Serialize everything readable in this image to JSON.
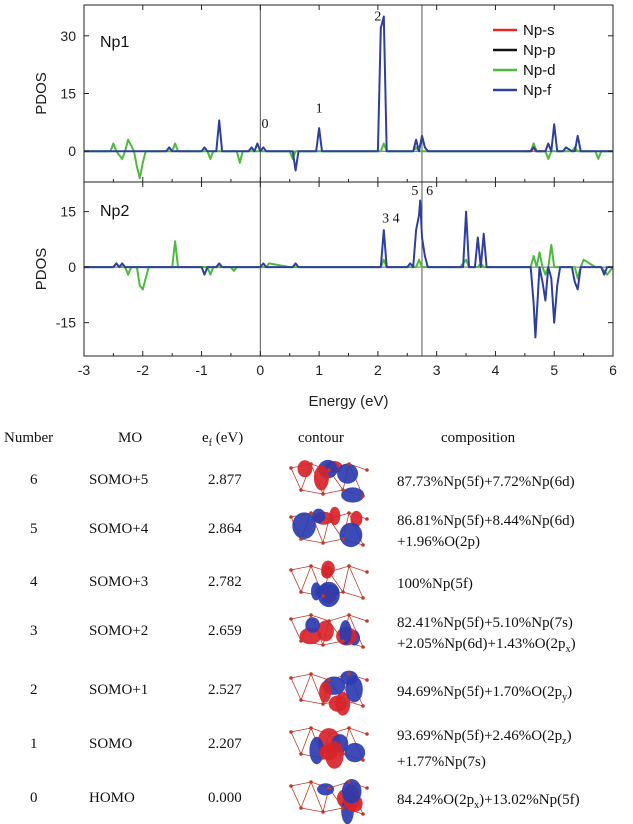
{
  "chart_data": [
    {
      "type": "line",
      "panel": "top",
      "panel_label": "Np1",
      "ylabel": "PDOS",
      "ylim": [
        -8,
        38
      ],
      "yticks": [
        "30",
        "15",
        "0"
      ],
      "ytick_values": [
        30,
        15,
        0
      ],
      "xlim": [
        -3,
        6
      ],
      "grid": false,
      "vlines": [
        0,
        2.75
      ],
      "legend": {
        "placement": "top-right",
        "entries": [
          {
            "name": "Np-s",
            "color": "#e8262a"
          },
          {
            "name": "Np-p",
            "color": "#111111"
          },
          {
            "name": "Np-d",
            "color": "#4cbb3c"
          },
          {
            "name": "Np-f",
            "color": "#2f3f9e"
          }
        ]
      },
      "annotations": [
        {
          "text": "0",
          "x": 0.08,
          "y": 6
        },
        {
          "text": "1",
          "x": 1.0,
          "y": 10
        },
        {
          "text": "2",
          "x": 2.0,
          "y": 34
        }
      ],
      "series": [
        {
          "name": "Np-s",
          "color": "#e8262a",
          "x": [
            4.5,
            4.62,
            4.65,
            4.68,
            4.8
          ],
          "y": [
            0,
            0,
            2,
            0,
            0
          ]
        },
        {
          "name": "Np-d",
          "color": "#4cbb3c",
          "x": [
            -3,
            -2.55,
            -2.5,
            -2.45,
            -2.35,
            -2.3,
            -2.25,
            -2.15,
            -2.1,
            -2.05,
            -2.0,
            -1.95,
            -1.8,
            -1.5,
            -1.45,
            -1.4,
            -1.2,
            -0.9,
            -0.85,
            -0.8,
            -0.5,
            -0.4,
            -0.35,
            -0.3,
            -0.2,
            -0.1,
            0,
            0.5,
            0.55,
            0.6,
            0.65,
            1.0,
            1.5,
            2.05,
            2.1,
            2.15,
            2.5,
            2.6,
            2.65,
            2.7,
            3.0,
            3.5,
            4.0,
            4.5,
            4.6,
            4.65,
            4.7,
            4.85,
            4.9,
            4.95,
            5.0,
            5.3,
            5.35,
            5.4,
            5.7,
            5.75,
            5.8,
            6.0
          ],
          "y": [
            0,
            0,
            2,
            0,
            -2,
            0,
            3,
            0,
            -4,
            -7,
            -3,
            0,
            0,
            0,
            2,
            0,
            0,
            0,
            -2,
            0,
            0,
            0,
            -3,
            0,
            0,
            0,
            0,
            0,
            -2,
            0,
            0,
            0,
            0,
            0,
            2,
            0,
            0,
            0,
            1,
            0,
            0,
            0,
            0,
            0,
            0,
            2,
            0,
            0,
            -2,
            0,
            0,
            0,
            1,
            0,
            0,
            -2,
            0,
            0
          ]
        },
        {
          "name": "Np-f",
          "color": "#2f3f9e",
          "x": [
            -3,
            -1.6,
            -1.55,
            -1.5,
            -1.0,
            -0.95,
            -0.9,
            -0.75,
            -0.7,
            -0.65,
            -0.2,
            -0.15,
            -0.1,
            -0.05,
            0,
            0.05,
            0.1,
            0.55,
            0.6,
            0.65,
            0.95,
            1.0,
            1.05,
            1.95,
            2.0,
            2.05,
            2.1,
            2.15,
            2.6,
            2.65,
            2.7,
            2.75,
            2.8,
            2.85,
            4.6,
            4.65,
            4.7,
            4.85,
            4.9,
            4.95,
            5.0,
            5.05,
            5.15,
            5.2,
            5.3,
            5.35,
            5.4,
            5.45,
            5.5,
            6.0
          ],
          "y": [
            0,
            0,
            1,
            0,
            0,
            1,
            0,
            0,
            8,
            0,
            0,
            1,
            0,
            2,
            0,
            1,
            0,
            0,
            -5,
            0,
            0,
            6,
            0,
            0,
            0,
            32,
            35,
            0,
            0,
            3,
            0,
            4,
            1,
            0,
            0,
            1,
            0,
            0,
            2,
            0,
            7,
            0,
            0,
            1,
            0,
            0,
            4,
            0,
            0,
            0
          ]
        }
      ]
    },
    {
      "type": "line",
      "panel": "bottom",
      "panel_label": "Np2",
      "ylabel": "PDOS",
      "xlabel": "Energy (eV)",
      "ylim": [
        -24,
        23
      ],
      "yticks": [
        "15",
        "0",
        "-15"
      ],
      "ytick_values": [
        15,
        0,
        -15
      ],
      "xlim": [
        -3,
        6
      ],
      "xticks": [
        "-3",
        "-2",
        "-1",
        "0",
        "1",
        "2",
        "3",
        "4",
        "5",
        "6"
      ],
      "xtick_values": [
        -3,
        -2,
        -1,
        0,
        1,
        2,
        3,
        4,
        5,
        6
      ],
      "grid": false,
      "vlines": [
        0,
        2.75
      ],
      "annotations": [
        {
          "text": "3 4",
          "x": 2.22,
          "y": 12
        },
        {
          "text": "5",
          "x": 2.63,
          "y": 19.5
        },
        {
          "text": "6",
          "x": 2.88,
          "y": 19.5
        }
      ],
      "series": [
        {
          "name": "Np-d",
          "color": "#4cbb3c",
          "x": [
            -3,
            -2.5,
            -2.45,
            -2.4,
            -2.3,
            -2.25,
            -2.2,
            -2.1,
            -2.05,
            -2.0,
            -1.95,
            -1.9,
            -1.7,
            -1.5,
            -1.45,
            -1.4,
            -1.3,
            -0.9,
            -0.85,
            -0.8,
            -0.5,
            -0.45,
            -0.4,
            0,
            0.1,
            0.15,
            0.5,
            2.05,
            2.1,
            2.15,
            2.65,
            2.7,
            2.75,
            3.4,
            3.5,
            3.55,
            3.7,
            3.75,
            3.8,
            4.6,
            4.65,
            4.7,
            4.75,
            4.8,
            4.85,
            4.9,
            4.95,
            5.0,
            5.05,
            5.1,
            5.35,
            5.4,
            5.45,
            5.5,
            5.7,
            5.8,
            5.9,
            6.0
          ],
          "y": [
            0,
            0,
            1,
            0,
            0,
            -2,
            0,
            0,
            -5,
            -6,
            -3,
            0,
            0,
            0,
            7,
            0,
            0,
            0,
            -2,
            0,
            0,
            -1,
            0,
            0,
            0,
            1,
            0,
            0,
            2,
            0,
            0,
            2,
            0,
            0,
            2,
            0,
            0,
            1,
            0,
            0,
            3,
            0,
            4,
            0,
            -2,
            0,
            6,
            0,
            0,
            0,
            0,
            -3,
            0,
            2,
            0,
            0,
            -2,
            0
          ]
        },
        {
          "name": "Np-f",
          "color": "#2f3f9e",
          "x": [
            -3,
            -2.5,
            -2.45,
            -2.4,
            -2.35,
            -2.3,
            -1.0,
            -0.95,
            -0.9,
            -0.75,
            -0.7,
            -0.65,
            0,
            0.05,
            0.1,
            0.15,
            0.55,
            0.6,
            0.65,
            2.0,
            2.05,
            2.1,
            2.15,
            2.5,
            2.55,
            2.6,
            2.65,
            2.7,
            2.72,
            2.75,
            2.8,
            2.85,
            3.4,
            3.45,
            3.5,
            3.55,
            3.65,
            3.7,
            3.75,
            3.8,
            3.85,
            4.6,
            4.65,
            4.68,
            4.72,
            4.75,
            4.8,
            4.85,
            4.9,
            4.95,
            5.0,
            5.05,
            5.1,
            5.3,
            5.35,
            5.4,
            5.45,
            5.8,
            5.85,
            5.9,
            6.0
          ],
          "y": [
            0,
            0,
            1,
            0,
            1,
            0,
            0,
            -2,
            0,
            0,
            1,
            0,
            0,
            1,
            0,
            0,
            0,
            1,
            0,
            0,
            0,
            10,
            0,
            0,
            1,
            0,
            10,
            14,
            18,
            8,
            3,
            0,
            0,
            0,
            15,
            0,
            0,
            8,
            0,
            9,
            0,
            0,
            -10,
            -19,
            -8,
            0,
            -4,
            -9,
            0,
            -3,
            -15,
            -5,
            0,
            0,
            -4,
            -6,
            0,
            0,
            -2,
            0,
            0
          ]
        }
      ]
    }
  ],
  "table": {
    "headers": {
      "number": "Number",
      "mo": "MO",
      "ef_main": "e",
      "ef_sub": "f",
      "ef_unit": " (eV)",
      "contour": "contour",
      "composition": "composition"
    },
    "rows": [
      {
        "number": "6",
        "mo": "SOMO+5",
        "ef": "2.877",
        "comp": [
          [
            {
              "t": "87.73%Np(5f)+7.72%Np(6d)"
            }
          ]
        ]
      },
      {
        "number": "5",
        "mo": "SOMO+4",
        "ef": "2.864",
        "comp": [
          [
            {
              "t": "86.81%Np(5f)+8.44%Np(6d)"
            }
          ],
          [
            {
              "t": "+1.96%O(2p)"
            }
          ]
        ]
      },
      {
        "number": "4",
        "mo": "SOMO+3",
        "ef": "2.782",
        "comp": [
          [
            {
              "t": "100%Np(5f)"
            }
          ]
        ]
      },
      {
        "number": "3",
        "mo": "SOMO+2",
        "ef": "2.659",
        "comp": [
          [
            {
              "t": "82.41%Np(5f)+5.10%Np(7s)"
            }
          ],
          [
            {
              "t": "+2.05%Np(6d)+1.43%O(2p"
            },
            {
              "t": "x",
              "sub": true
            },
            {
              "t": ")"
            }
          ]
        ]
      },
      {
        "number": "2",
        "mo": "SOMO+1",
        "ef": "2.527",
        "comp": [
          [
            {
              "t": "94.69%Np(5f)+1.70%O(2p"
            },
            {
              "t": "y",
              "sub": true
            },
            {
              "t": ")"
            }
          ]
        ]
      },
      {
        "number": "1",
        "mo": "SOMO",
        "ef": "2.207",
        "comp": [
          [
            {
              "t": "93.69%Np(5f)+2.46%O(2p"
            },
            {
              "t": "z",
              "sub": true
            },
            {
              "t": ")"
            }
          ],
          [
            {
              "t": "+1.77%Np(7s)"
            }
          ]
        ]
      },
      {
        "number": "0",
        "mo": "HOMO",
        "ef": "0.000",
        "comp": [
          [
            {
              "t": "84.24%O(2p"
            },
            {
              "t": "x",
              "sub": true
            },
            {
              "t": ")+13.02%Np(5f)"
            }
          ]
        ]
      }
    ]
  },
  "colors": {
    "lobe_positive": "#d8232a",
    "lobe_negative": "#2b3cb0",
    "bond": "#c0392b"
  }
}
